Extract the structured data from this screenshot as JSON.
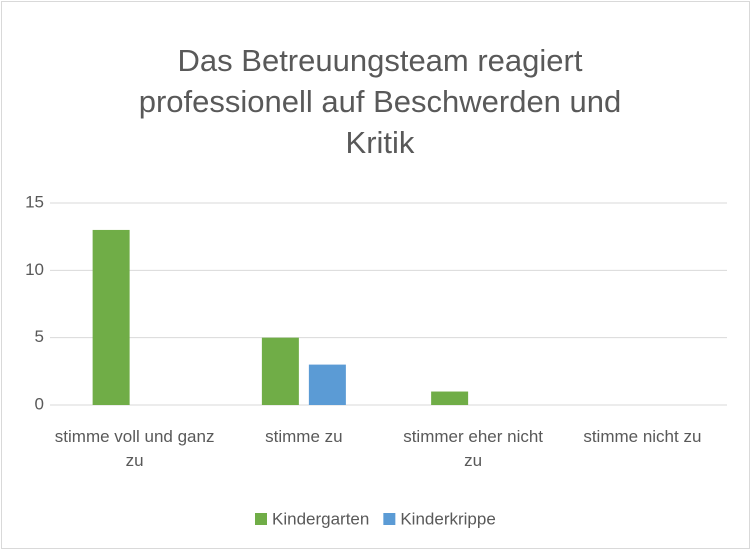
{
  "chart_data": {
    "type": "bar",
    "title": "Das Betreuungsteam reagiert professionell auf Beschwerden und Kritik",
    "categories": [
      "stimme voll und ganz zu",
      "stimme zu",
      "stimmer eher nicht zu",
      "stimme nicht zu"
    ],
    "series": [
      {
        "name": "Kindergarten",
        "color": "#70ad47",
        "values": [
          13,
          5,
          1,
          0
        ]
      },
      {
        "name": "Kinderkrippe",
        "color": "#5b9bd5",
        "values": [
          0,
          3,
          0,
          0
        ]
      }
    ],
    "ylim": [
      0,
      15
    ],
    "yticks": [
      0,
      5,
      10,
      15
    ],
    "grid": true,
    "legend": "bottom"
  }
}
